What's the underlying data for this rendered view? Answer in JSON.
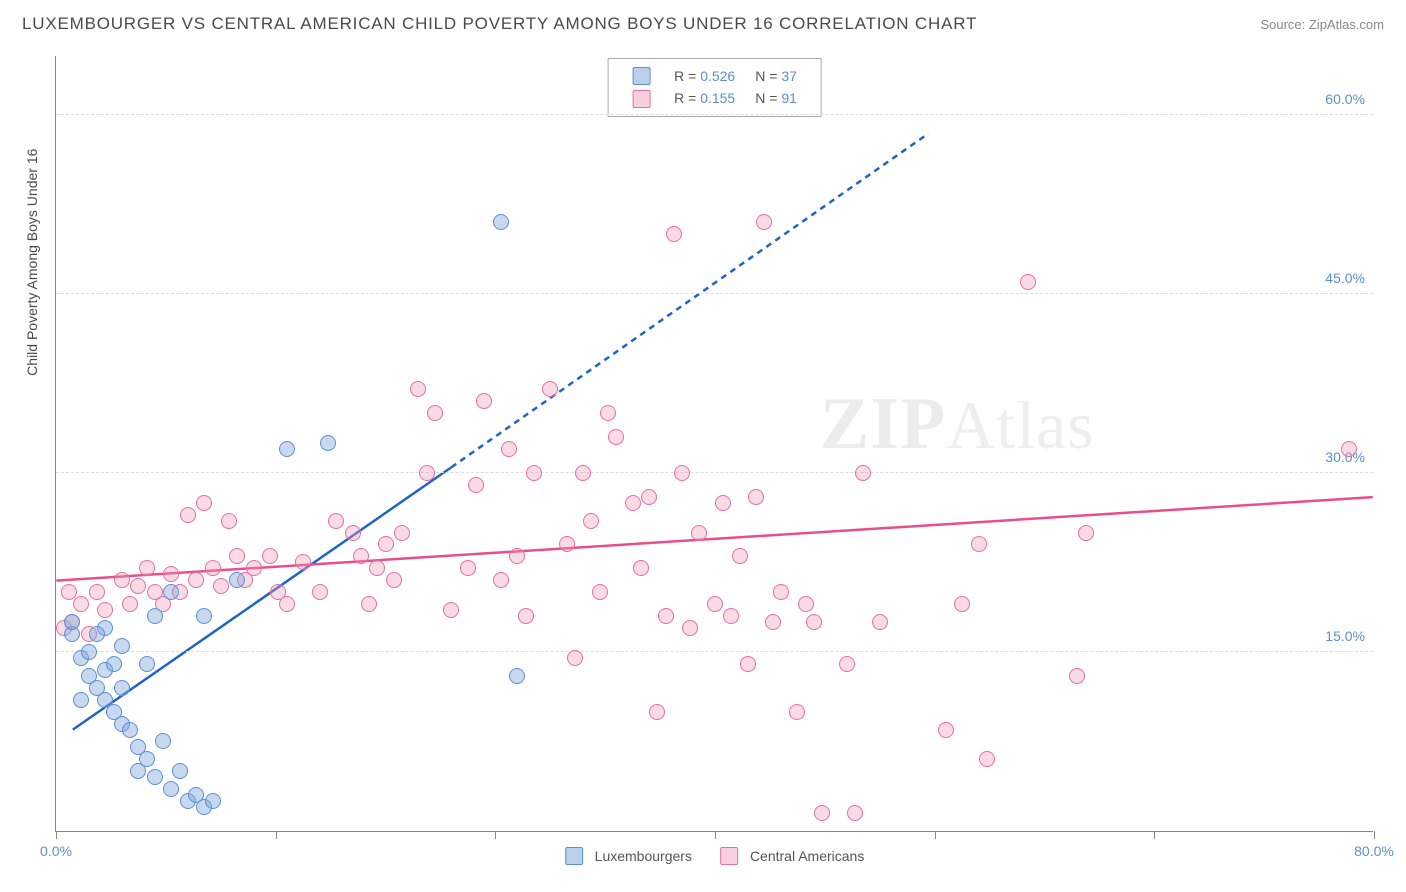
{
  "title": "LUXEMBOURGER VS CENTRAL AMERICAN CHILD POVERTY AMONG BOYS UNDER 16 CORRELATION CHART",
  "source_prefix": "Source: ",
  "source_name": "ZipAtlas.com",
  "y_axis_label": "Child Poverty Among Boys Under 16",
  "watermark_bold": "ZIP",
  "watermark_light": "Atlas",
  "chart": {
    "type": "scatter",
    "xlim": [
      0,
      80
    ],
    "ylim": [
      0,
      65
    ],
    "x_ticks": [
      0,
      13.33,
      26.67,
      40,
      53.33,
      66.67,
      80
    ],
    "x_tick_labels": {
      "0": "0.0%",
      "80": "80.0%"
    },
    "y_ticks": [
      15,
      30,
      45,
      60
    ],
    "y_tick_labels": {
      "15": "15.0%",
      "30": "30.0%",
      "45": "45.0%",
      "60": "60.0%"
    },
    "grid_color": "#dcdcdc",
    "grid_dash": true,
    "background_color": "#ffffff",
    "axis_color": "#888888",
    "tick_label_color": "#5b8fd6",
    "point_radius": 8,
    "axis_label_fontsize": 14
  },
  "series": {
    "lux": {
      "label": "Luxembourgers",
      "fill": "rgba(131,168,219,0.45)",
      "stroke": "#5b8fd6",
      "R": "0.526",
      "N": "37",
      "trend": {
        "solid": {
          "x1": 1,
          "y1": 8.5,
          "x2": 24,
          "y2": 30.5
        },
        "dashed": {
          "x1": 24,
          "y1": 30.5,
          "x2": 53,
          "y2": 58.5
        },
        "width": 2.5,
        "color": "#1f63c9"
      },
      "points": [
        [
          1,
          16.5
        ],
        [
          1.5,
          14.5
        ],
        [
          2,
          13
        ],
        [
          2,
          15
        ],
        [
          2.5,
          12
        ],
        [
          3,
          11
        ],
        [
          3,
          13.5
        ],
        [
          3.5,
          10
        ],
        [
          3.5,
          14
        ],
        [
          4,
          9
        ],
        [
          4,
          12
        ],
        [
          4.5,
          8.5
        ],
        [
          5,
          7
        ],
        [
          5,
          5
        ],
        [
          5.5,
          6
        ],
        [
          6,
          4.5
        ],
        [
          6.5,
          7.5
        ],
        [
          7,
          3.5
        ],
        [
          7.5,
          5
        ],
        [
          8,
          2.5
        ],
        [
          8.5,
          3
        ],
        [
          9,
          2
        ],
        [
          9.5,
          2.5
        ],
        [
          6,
          18
        ],
        [
          7,
          20
        ],
        [
          9,
          18
        ],
        [
          1,
          17.5
        ],
        [
          3,
          17
        ],
        [
          14,
          32
        ],
        [
          11,
          21
        ],
        [
          16.5,
          32.5
        ],
        [
          27,
          51
        ],
        [
          28,
          13
        ],
        [
          5.5,
          14
        ],
        [
          4,
          15.5
        ],
        [
          2.5,
          16.5
        ],
        [
          1.5,
          11
        ]
      ]
    },
    "cam": {
      "label": "Central Americans",
      "fill": "rgba(240,150,180,0.35)",
      "stroke": "#e76ea0",
      "R": "0.155",
      "N": "91",
      "trend": {
        "solid": {
          "x1": 0,
          "y1": 21,
          "x2": 80,
          "y2": 28
        },
        "width": 2.5,
        "color": "#e94e8b"
      },
      "points": [
        [
          0.5,
          17
        ],
        [
          1,
          17.5
        ],
        [
          1.5,
          19
        ],
        [
          2,
          16.5
        ],
        [
          2.5,
          20
        ],
        [
          3,
          18.5
        ],
        [
          4,
          21
        ],
        [
          4.5,
          19
        ],
        [
          5,
          20.5
        ],
        [
          5.5,
          22
        ],
        [
          6,
          20
        ],
        [
          6.5,
          19
        ],
        [
          7,
          21.5
        ],
        [
          7.5,
          20
        ],
        [
          8,
          26.5
        ],
        [
          8.5,
          21
        ],
        [
          9,
          27.5
        ],
        [
          9.5,
          22
        ],
        [
          10,
          20.5
        ],
        [
          10.5,
          26
        ],
        [
          11,
          23
        ],
        [
          11.5,
          21
        ],
        [
          12,
          22
        ],
        [
          13,
          23
        ],
        [
          13.5,
          20
        ],
        [
          14,
          19
        ],
        [
          15,
          22.5
        ],
        [
          16,
          20
        ],
        [
          17,
          26
        ],
        [
          18,
          25
        ],
        [
          18.5,
          23
        ],
        [
          19,
          19
        ],
        [
          19.5,
          22
        ],
        [
          20,
          24
        ],
        [
          20.5,
          21
        ],
        [
          21,
          25
        ],
        [
          22,
          37
        ],
        [
          22.5,
          30
        ],
        [
          23,
          35
        ],
        [
          24,
          18.5
        ],
        [
          25,
          22
        ],
        [
          25.5,
          29
        ],
        [
          26,
          36
        ],
        [
          27,
          21
        ],
        [
          27.5,
          32
        ],
        [
          28,
          23
        ],
        [
          28.5,
          18
        ],
        [
          29,
          30
        ],
        [
          30,
          37
        ],
        [
          31,
          24
        ],
        [
          31.5,
          14.5
        ],
        [
          32,
          30
        ],
        [
          32.5,
          26
        ],
        [
          33,
          20
        ],
        [
          33.5,
          35
        ],
        [
          34,
          33
        ],
        [
          35,
          27.5
        ],
        [
          35.5,
          22
        ],
        [
          36,
          28
        ],
        [
          36.5,
          10
        ],
        [
          37,
          18
        ],
        [
          37.5,
          50
        ],
        [
          38,
          30
        ],
        [
          38.5,
          17
        ],
        [
          39,
          25
        ],
        [
          40,
          19
        ],
        [
          40.5,
          27.5
        ],
        [
          41,
          18
        ],
        [
          41.5,
          23
        ],
        [
          42,
          14
        ],
        [
          42.5,
          28
        ],
        [
          43,
          51
        ],
        [
          43.5,
          17.5
        ],
        [
          44,
          20
        ],
        [
          45,
          10
        ],
        [
          45.5,
          19
        ],
        [
          46,
          17.5
        ],
        [
          48,
          14
        ],
        [
          49,
          30
        ],
        [
          50,
          17.5
        ],
        [
          54,
          8.5
        ],
        [
          55,
          19
        ],
        [
          56,
          24
        ],
        [
          59,
          46
        ],
        [
          62,
          13
        ],
        [
          62.5,
          25
        ],
        [
          56.5,
          6
        ],
        [
          46.5,
          1.5
        ],
        [
          48.5,
          1.5
        ],
        [
          78.5,
          32
        ],
        [
          0.8,
          20
        ]
      ]
    }
  },
  "legend_top_labels": {
    "R": "R =",
    "N": "N ="
  },
  "legend_bottom": [
    "Luxembourgers",
    "Central Americans"
  ]
}
